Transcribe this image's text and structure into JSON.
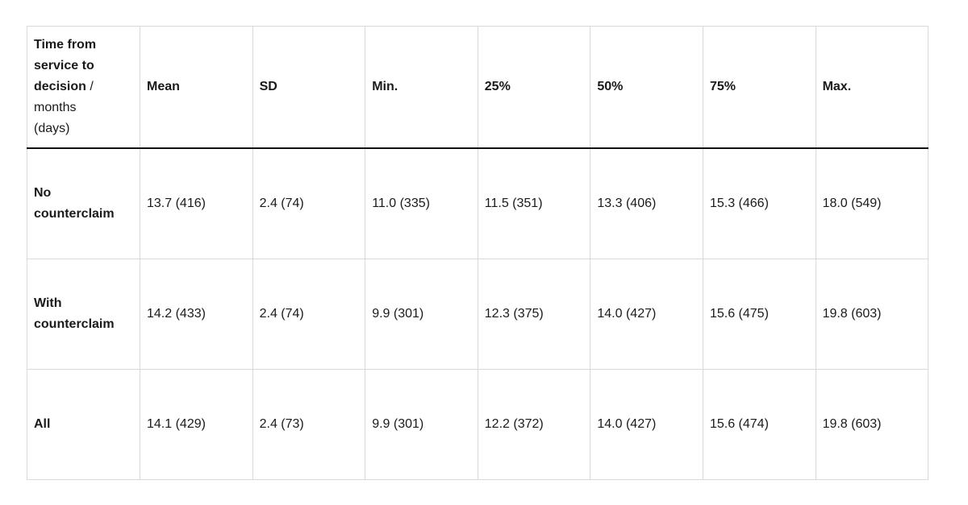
{
  "colors": {
    "background": "#ffffff",
    "grid_border": "#d9d9d9",
    "header_rule": "#121212",
    "text": "#1a1a1a"
  },
  "display": {
    "corner": {
      "bold": "Time from service to decision",
      "regular": "/ months (days)"
    }
  },
  "chart_data": {
    "type": "table",
    "title": "Time from service to decision / months (days)",
    "columns": [
      "Time from service to decision / months (days)",
      "Mean",
      "SD",
      "Min.",
      "25%",
      "50%",
      "75%",
      "Max."
    ],
    "column_alignments": [
      "left",
      "left",
      "left",
      "left",
      "right",
      "right",
      "right",
      "left"
    ],
    "rows": [
      [
        "No counterclaim",
        "13.7 (416)",
        "2.4 (74)",
        "11.0 (335)",
        "11.5 (351)",
        "13.3 (406)",
        "15.3 (466)",
        "18.0 (549)"
      ],
      [
        "With counterclaim",
        "14.2 (433)",
        "2.4 (74)",
        "9.9 (301)",
        "12.3 (375)",
        "14.0 (427)",
        "15.6 (475)",
        "19.8 (603)"
      ],
      [
        "All",
        "14.1 (429)",
        "2.4 (73)",
        "9.9 (301)",
        "12.2 (372)",
        "14.0 (427)",
        "15.6 (474)",
        "19.8 (603)"
      ]
    ],
    "legend_position": "none",
    "grid": true
  }
}
